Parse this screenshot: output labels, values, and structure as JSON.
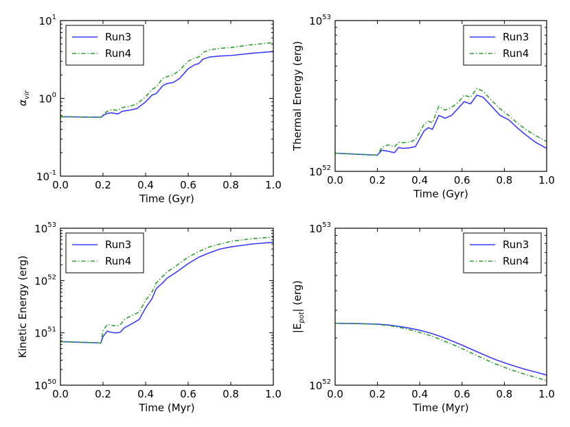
{
  "chart_data": [
    {
      "type": "line",
      "xlabel": "Time (Gyr)",
      "ylabel": "α_vir",
      "yscale": "log",
      "xlim": [
        0,
        1
      ],
      "ylim_exp": [
        -1,
        1
      ],
      "xticks": [
        "0.0",
        "0.2",
        "0.4",
        "0.6",
        "0.8",
        "1.0"
      ],
      "yticks": [
        {
          "base": "10",
          "exp": "-1"
        },
        {
          "base": "10",
          "exp": "0"
        },
        {
          "base": "10",
          "exp": "1"
        }
      ],
      "legend": "top-left",
      "series": [
        {
          "name": "Run3",
          "color": "#3b3bff",
          "style": "solid",
          "x": [
            0,
            0.05,
            0.1,
            0.15,
            0.19,
            0.2,
            0.22,
            0.24,
            0.27,
            0.29,
            0.3,
            0.32,
            0.36,
            0.4,
            0.43,
            0.45,
            0.48,
            0.5,
            0.53,
            0.56,
            0.6,
            0.63,
            0.65,
            0.67,
            0.7,
            0.75,
            0.8,
            0.9,
            1.0
          ],
          "y": [
            0.58,
            0.58,
            0.575,
            0.575,
            0.57,
            0.6,
            0.64,
            0.65,
            0.63,
            0.68,
            0.69,
            0.7,
            0.74,
            0.9,
            1.1,
            1.15,
            1.45,
            1.55,
            1.6,
            1.8,
            2.4,
            2.7,
            2.8,
            3.2,
            3.4,
            3.5,
            3.55,
            3.8,
            4.0
          ]
        },
        {
          "name": "Run4",
          "color": "#2ca02c",
          "style": "dashdot",
          "x": [
            0,
            0.05,
            0.1,
            0.15,
            0.19,
            0.2,
            0.22,
            0.24,
            0.27,
            0.29,
            0.3,
            0.32,
            0.36,
            0.4,
            0.43,
            0.45,
            0.48,
            0.5,
            0.53,
            0.56,
            0.6,
            0.63,
            0.65,
            0.67,
            0.7,
            0.75,
            0.8,
            0.9,
            1.0
          ],
          "y": [
            0.58,
            0.58,
            0.575,
            0.575,
            0.57,
            0.62,
            0.68,
            0.72,
            0.7,
            0.76,
            0.77,
            0.78,
            0.85,
            1.05,
            1.3,
            1.4,
            1.8,
            1.9,
            2.0,
            2.3,
            3.0,
            3.3,
            3.4,
            3.9,
            4.2,
            4.4,
            4.5,
            4.9,
            5.2
          ]
        }
      ]
    },
    {
      "type": "line",
      "xlabel": "Time (Gyr)",
      "ylabel": "Thermal Energy (erg)",
      "yscale": "log",
      "xlim": [
        0,
        1
      ],
      "ylim_exp": [
        52,
        53
      ],
      "xticks": [
        "0.0",
        "0.2",
        "0.4",
        "0.6",
        "0.8",
        "1.0"
      ],
      "yticks": [
        {
          "base": "10",
          "exp": "52"
        },
        {
          "base": "10",
          "exp": "53"
        }
      ],
      "legend": "top-right",
      "series": [
        {
          "name": "Run3",
          "color": "#3b3bff",
          "style": "solid",
          "x": [
            0,
            0.05,
            0.1,
            0.15,
            0.2,
            0.22,
            0.25,
            0.28,
            0.3,
            0.32,
            0.35,
            0.38,
            0.42,
            0.44,
            0.46,
            0.49,
            0.52,
            0.55,
            0.58,
            0.61,
            0.64,
            0.67,
            0.7,
            0.74,
            0.78,
            0.82,
            0.86,
            0.9,
            0.95,
            1.0
          ],
          "y": [
            1.32e+52,
            1.31e+52,
            1.3e+52,
            1.29e+52,
            1.28e+52,
            1.38e+52,
            1.36e+52,
            1.33e+52,
            1.44e+52,
            1.42e+52,
            1.43e+52,
            1.46e+52,
            1.85e+52,
            1.95e+52,
            1.9e+52,
            2.35e+52,
            2.25e+52,
            2.35e+52,
            2.6e+52,
            2.9e+52,
            2.8e+52,
            3.2e+52,
            3.1e+52,
            2.7e+52,
            2.35e+52,
            2.2e+52,
            1.95e+52,
            1.75e+52,
            1.55e+52,
            1.42e+52
          ]
        },
        {
          "name": "Run4",
          "color": "#2ca02c",
          "style": "dashdot",
          "x": [
            0,
            0.05,
            0.1,
            0.15,
            0.2,
            0.22,
            0.25,
            0.28,
            0.3,
            0.32,
            0.35,
            0.38,
            0.42,
            0.44,
            0.46,
            0.49,
            0.52,
            0.55,
            0.58,
            0.61,
            0.64,
            0.67,
            0.7,
            0.74,
            0.78,
            0.82,
            0.86,
            0.9,
            0.95,
            1.0
          ],
          "y": [
            1.32e+52,
            1.31e+52,
            1.3e+52,
            1.29e+52,
            1.28e+52,
            1.44e+52,
            1.5e+52,
            1.45e+52,
            1.56e+52,
            1.55e+52,
            1.56e+52,
            1.62e+52,
            2.05e+52,
            2.15e+52,
            2.1e+52,
            2.7e+52,
            2.55e+52,
            2.65e+52,
            2.85e+52,
            3.2e+52,
            3.1e+52,
            3.55e+52,
            3.4e+52,
            2.95e+52,
            2.6e+52,
            2.35e+52,
            2.1e+52,
            1.9e+52,
            1.72e+52,
            1.58e+52
          ]
        }
      ]
    },
    {
      "type": "line",
      "xlabel": "Time (Myr)",
      "ylabel": "Kinetic Energy (erg)",
      "yscale": "log",
      "xlim": [
        0,
        1
      ],
      "ylim_exp": [
        50,
        53
      ],
      "xticks": [
        "0.0",
        "0.2",
        "0.4",
        "0.6",
        "0.8",
        "1.0"
      ],
      "yticks": [
        {
          "base": "10",
          "exp": "50"
        },
        {
          "base": "10",
          "exp": "51"
        },
        {
          "base": "10",
          "exp": "52"
        },
        {
          "base": "10",
          "exp": "53"
        }
      ],
      "legend": "top-left",
      "series": [
        {
          "name": "Run3",
          "color": "#3b3bff",
          "style": "solid",
          "x": [
            0,
            0.05,
            0.1,
            0.15,
            0.19,
            0.2,
            0.22,
            0.24,
            0.26,
            0.28,
            0.3,
            0.33,
            0.37,
            0.4,
            0.43,
            0.45,
            0.48,
            0.5,
            0.55,
            0.6,
            0.65,
            0.7,
            0.75,
            0.8,
            0.9,
            1.0
          ],
          "y": [
            6.8e+50,
            6.7e+50,
            6.6e+50,
            6.5e+50,
            6.4e+50,
            8.5e+50,
            1.08e+51,
            1.02e+51,
            1e+51,
            1.02e+51,
            1.25e+51,
            1.45e+51,
            1.8e+51,
            3e+51,
            4.5e+51,
            7e+51,
            9e+51,
            1.1e+52,
            1.5e+52,
            2.1e+52,
            2.8e+52,
            3.4e+52,
            4e+52,
            4.4e+52,
            5e+52,
            5.4e+52
          ]
        },
        {
          "name": "Run4",
          "color": "#2ca02c",
          "style": "dashdot",
          "x": [
            0,
            0.05,
            0.1,
            0.15,
            0.19,
            0.2,
            0.22,
            0.24,
            0.26,
            0.28,
            0.3,
            0.33,
            0.37,
            0.4,
            0.43,
            0.45,
            0.48,
            0.5,
            0.55,
            0.6,
            0.65,
            0.7,
            0.75,
            0.8,
            0.9,
            1.0
          ],
          "y": [
            6.8e+50,
            6.7e+50,
            6.6e+50,
            6.5e+50,
            6.4e+50,
            1.1e+51,
            1.45e+51,
            1.4e+51,
            1.35e+51,
            1.4e+51,
            1.8e+51,
            2.1e+51,
            2.5e+51,
            4.2e+51,
            6e+51,
            9e+51,
            1.2e+52,
            1.45e+52,
            2e+52,
            2.8e+52,
            3.6e+52,
            4.4e+52,
            5e+52,
            5.6e+52,
            6.3e+52,
            6.8e+52
          ]
        }
      ]
    },
    {
      "type": "line",
      "xlabel": "Time (Myr)",
      "ylabel": "|E_pot| (erg)",
      "yscale": "log",
      "xlim": [
        0,
        1
      ],
      "ylim_exp": [
        52,
        53
      ],
      "xticks": [
        "0.0",
        "0.2",
        "0.4",
        "0.6",
        "0.8",
        "1.0"
      ],
      "yticks": [
        {
          "base": "10",
          "exp": "52"
        },
        {
          "base": "10",
          "exp": "53"
        }
      ],
      "legend": "top-right",
      "series": [
        {
          "name": "Run3",
          "color": "#3b3bff",
          "style": "solid",
          "x": [
            0,
            0.1,
            0.2,
            0.25,
            0.3,
            0.35,
            0.4,
            0.45,
            0.5,
            0.55,
            0.6,
            0.65,
            0.7,
            0.75,
            0.8,
            0.85,
            0.9,
            0.95,
            1.0
          ],
          "y": [
            2.48e+52,
            2.47e+52,
            2.45e+52,
            2.42e+52,
            2.37e+52,
            2.31e+52,
            2.24e+52,
            2.15e+52,
            2.04e+52,
            1.92e+52,
            1.8e+52,
            1.68e+52,
            1.57e+52,
            1.47e+52,
            1.39e+52,
            1.32e+52,
            1.26e+52,
            1.21e+52,
            1.16e+52
          ]
        },
        {
          "name": "Run4",
          "color": "#2ca02c",
          "style": "dashdot",
          "x": [
            0,
            0.1,
            0.2,
            0.25,
            0.3,
            0.35,
            0.4,
            0.45,
            0.5,
            0.55,
            0.6,
            0.65,
            0.7,
            0.75,
            0.8,
            0.85,
            0.9,
            0.95,
            1.0
          ],
          "y": [
            2.48e+52,
            2.47e+52,
            2.44e+52,
            2.4e+52,
            2.34e+52,
            2.26e+52,
            2.17e+52,
            2.07e+52,
            1.95e+52,
            1.83e+52,
            1.71e+52,
            1.59e+52,
            1.48e+52,
            1.38e+52,
            1.3e+52,
            1.23e+52,
            1.17e+52,
            1.12e+52,
            1.07e+52
          ]
        }
      ]
    }
  ]
}
